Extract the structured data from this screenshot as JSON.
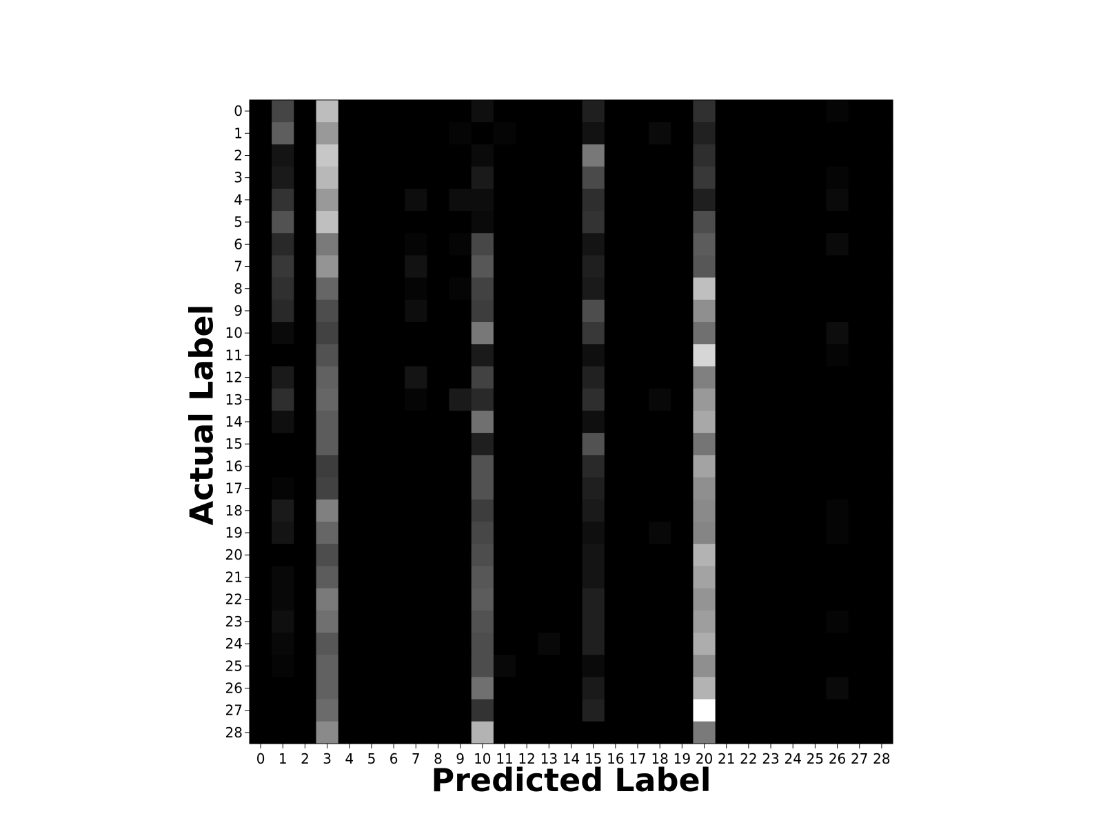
{
  "chart_data": {
    "type": "heatmap",
    "colormap": "gray",
    "xlabel": "Predicted Label",
    "ylabel": "Actual Label",
    "x_tick_labels": [
      "0",
      "1",
      "2",
      "3",
      "4",
      "5",
      "6",
      "7",
      "8",
      "9",
      "10",
      "11",
      "12",
      "13",
      "14",
      "15",
      "16",
      "17",
      "18",
      "19",
      "20",
      "21",
      "22",
      "23",
      "24",
      "25",
      "26",
      "27",
      "28"
    ],
    "y_tick_labels": [
      "0",
      "1",
      "2",
      "3",
      "4",
      "5",
      "6",
      "7",
      "8",
      "9",
      "10",
      "11",
      "12",
      "13",
      "14",
      "15",
      "16",
      "17",
      "18",
      "19",
      "20",
      "21",
      "22",
      "23",
      "24",
      "25",
      "26",
      "27",
      "28"
    ],
    "value_range": [
      0,
      1
    ],
    "matrix": [
      [
        0,
        0.27,
        0,
        0.74,
        0,
        0,
        0,
        0,
        0,
        0,
        0.06,
        0,
        0,
        0,
        0,
        0.12,
        0,
        0,
        0,
        0,
        0.19,
        0,
        0,
        0,
        0,
        0,
        0.02,
        0,
        0
      ],
      [
        0,
        0.37,
        0,
        0.6,
        0,
        0,
        0,
        0,
        0,
        0.02,
        0,
        0.02,
        0,
        0,
        0,
        0.07,
        0,
        0,
        0.04,
        0,
        0.13,
        0,
        0,
        0,
        0,
        0,
        0,
        0,
        0
      ],
      [
        0,
        0.08,
        0,
        0.78,
        0,
        0,
        0,
        0,
        0,
        0,
        0.04,
        0,
        0,
        0,
        0,
        0.47,
        0,
        0,
        0,
        0,
        0.18,
        0,
        0,
        0,
        0,
        0,
        0,
        0,
        0
      ],
      [
        0,
        0.1,
        0,
        0.72,
        0,
        0,
        0,
        0,
        0,
        0,
        0.1,
        0,
        0,
        0,
        0,
        0.29,
        0,
        0,
        0,
        0,
        0.22,
        0,
        0,
        0,
        0,
        0,
        0.02,
        0,
        0
      ],
      [
        0,
        0.2,
        0,
        0.6,
        0,
        0,
        0,
        0.05,
        0,
        0.05,
        0.05,
        0,
        0,
        0,
        0,
        0.18,
        0,
        0,
        0,
        0,
        0.12,
        0,
        0,
        0,
        0,
        0,
        0.04,
        0,
        0
      ],
      [
        0,
        0.32,
        0,
        0.75,
        0,
        0,
        0,
        0,
        0,
        0,
        0.04,
        0,
        0,
        0,
        0,
        0.2,
        0,
        0,
        0,
        0,
        0.3,
        0,
        0,
        0,
        0,
        0,
        0,
        0,
        0
      ],
      [
        0,
        0.16,
        0,
        0.48,
        0,
        0,
        0,
        0.02,
        0,
        0.02,
        0.28,
        0,
        0,
        0,
        0,
        0.08,
        0,
        0,
        0,
        0,
        0.36,
        0,
        0,
        0,
        0,
        0,
        0.04,
        0,
        0
      ],
      [
        0,
        0.22,
        0,
        0.58,
        0,
        0,
        0,
        0.07,
        0,
        0,
        0.34,
        0,
        0,
        0,
        0,
        0.12,
        0,
        0,
        0,
        0,
        0.34,
        0,
        0,
        0,
        0,
        0,
        0,
        0,
        0
      ],
      [
        0,
        0.19,
        0,
        0.4,
        0,
        0,
        0,
        0.02,
        0,
        0.02,
        0.26,
        0,
        0,
        0,
        0,
        0.1,
        0,
        0,
        0,
        0,
        0.75,
        0,
        0,
        0,
        0,
        0,
        0,
        0,
        0
      ],
      [
        0,
        0.16,
        0,
        0.3,
        0,
        0,
        0,
        0.05,
        0,
        0,
        0.24,
        0,
        0,
        0,
        0,
        0.3,
        0,
        0,
        0,
        0,
        0.56,
        0,
        0,
        0,
        0,
        0,
        0,
        0,
        0
      ],
      [
        0,
        0.04,
        0,
        0.26,
        0,
        0,
        0,
        0,
        0,
        0,
        0.47,
        0,
        0,
        0,
        0,
        0.22,
        0,
        0,
        0,
        0,
        0.44,
        0,
        0,
        0,
        0,
        0,
        0.05,
        0,
        0
      ],
      [
        0,
        0,
        0,
        0.32,
        0,
        0,
        0,
        0,
        0,
        0,
        0.1,
        0,
        0,
        0,
        0,
        0.06,
        0,
        0,
        0,
        0,
        0.84,
        0,
        0,
        0,
        0,
        0,
        0.02,
        0,
        0
      ],
      [
        0,
        0.1,
        0,
        0.38,
        0,
        0,
        0,
        0.08,
        0,
        0,
        0.26,
        0,
        0,
        0,
        0,
        0.13,
        0,
        0,
        0,
        0,
        0.5,
        0,
        0,
        0,
        0,
        0,
        0,
        0,
        0
      ],
      [
        0,
        0.18,
        0,
        0.4,
        0,
        0,
        0,
        0.02,
        0,
        0.1,
        0.16,
        0,
        0,
        0,
        0,
        0.18,
        0,
        0,
        0.03,
        0,
        0.6,
        0,
        0,
        0,
        0,
        0,
        0,
        0,
        0
      ],
      [
        0,
        0.06,
        0,
        0.36,
        0,
        0,
        0,
        0,
        0,
        0,
        0.44,
        0,
        0,
        0,
        0,
        0.06,
        0,
        0,
        0,
        0,
        0.66,
        0,
        0,
        0,
        0,
        0,
        0,
        0,
        0
      ],
      [
        0,
        0,
        0,
        0.36,
        0,
        0,
        0,
        0,
        0,
        0,
        0.12,
        0,
        0,
        0,
        0,
        0.32,
        0,
        0,
        0,
        0,
        0.46,
        0,
        0,
        0,
        0,
        0,
        0,
        0,
        0
      ],
      [
        0,
        0,
        0,
        0.24,
        0,
        0,
        0,
        0,
        0,
        0,
        0.32,
        0,
        0,
        0,
        0,
        0.16,
        0,
        0,
        0,
        0,
        0.64,
        0,
        0,
        0,
        0,
        0,
        0,
        0,
        0
      ],
      [
        0,
        0.02,
        0,
        0.26,
        0,
        0,
        0,
        0,
        0,
        0,
        0.32,
        0,
        0,
        0,
        0,
        0.12,
        0,
        0,
        0,
        0,
        0.56,
        0,
        0,
        0,
        0,
        0,
        0,
        0,
        0
      ],
      [
        0,
        0.1,
        0,
        0.5,
        0,
        0,
        0,
        0,
        0,
        0,
        0.24,
        0,
        0,
        0,
        0,
        0.1,
        0,
        0,
        0,
        0,
        0.54,
        0,
        0,
        0,
        0,
        0,
        0.02,
        0,
        0
      ],
      [
        0,
        0.08,
        0,
        0.4,
        0,
        0,
        0,
        0,
        0,
        0,
        0.28,
        0,
        0,
        0,
        0,
        0.06,
        0,
        0,
        0.03,
        0,
        0.52,
        0,
        0,
        0,
        0,
        0,
        0.02,
        0,
        0
      ],
      [
        0,
        0,
        0,
        0.3,
        0,
        0,
        0,
        0,
        0,
        0,
        0.3,
        0,
        0,
        0,
        0,
        0.08,
        0,
        0,
        0,
        0,
        0.7,
        0,
        0,
        0,
        0,
        0,
        0,
        0,
        0
      ],
      [
        0,
        0.03,
        0,
        0.36,
        0,
        0,
        0,
        0,
        0,
        0,
        0.34,
        0,
        0,
        0,
        0,
        0.08,
        0,
        0,
        0,
        0,
        0.64,
        0,
        0,
        0,
        0,
        0,
        0,
        0,
        0
      ],
      [
        0,
        0.03,
        0,
        0.48,
        0,
        0,
        0,
        0,
        0,
        0,
        0.36,
        0,
        0,
        0,
        0,
        0.12,
        0,
        0,
        0,
        0,
        0.58,
        0,
        0,
        0,
        0,
        0,
        0,
        0,
        0
      ],
      [
        0,
        0.06,
        0,
        0.44,
        0,
        0,
        0,
        0,
        0,
        0,
        0.32,
        0,
        0,
        0,
        0,
        0.12,
        0,
        0,
        0,
        0,
        0.62,
        0,
        0,
        0,
        0,
        0,
        0.02,
        0,
        0
      ],
      [
        0,
        0.03,
        0,
        0.34,
        0,
        0,
        0,
        0,
        0,
        0,
        0.3,
        0,
        0,
        0.03,
        0,
        0.12,
        0,
        0,
        0,
        0,
        0.68,
        0,
        0,
        0,
        0,
        0,
        0,
        0,
        0
      ],
      [
        0,
        0.02,
        0,
        0.38,
        0,
        0,
        0,
        0,
        0,
        0,
        0.3,
        0.03,
        0,
        0,
        0,
        0.04,
        0,
        0,
        0,
        0,
        0.56,
        0,
        0,
        0,
        0,
        0,
        0,
        0,
        0
      ],
      [
        0,
        0,
        0,
        0.38,
        0,
        0,
        0,
        0,
        0,
        0,
        0.44,
        0,
        0,
        0,
        0,
        0.1,
        0,
        0,
        0,
        0,
        0.7,
        0,
        0,
        0,
        0,
        0,
        0.04,
        0,
        0
      ],
      [
        0,
        0,
        0,
        0.42,
        0,
        0,
        0,
        0,
        0,
        0,
        0.2,
        0,
        0,
        0,
        0,
        0.13,
        0,
        0,
        0,
        0,
        1.0,
        0,
        0,
        0,
        0,
        0,
        0,
        0,
        0
      ],
      [
        0,
        0,
        0,
        0.54,
        0,
        0,
        0,
        0,
        0,
        0,
        0.7,
        0,
        0,
        0,
        0,
        0,
        0,
        0,
        0,
        0,
        0.48,
        0,
        0,
        0,
        0,
        0,
        0,
        0,
        0
      ]
    ]
  }
}
